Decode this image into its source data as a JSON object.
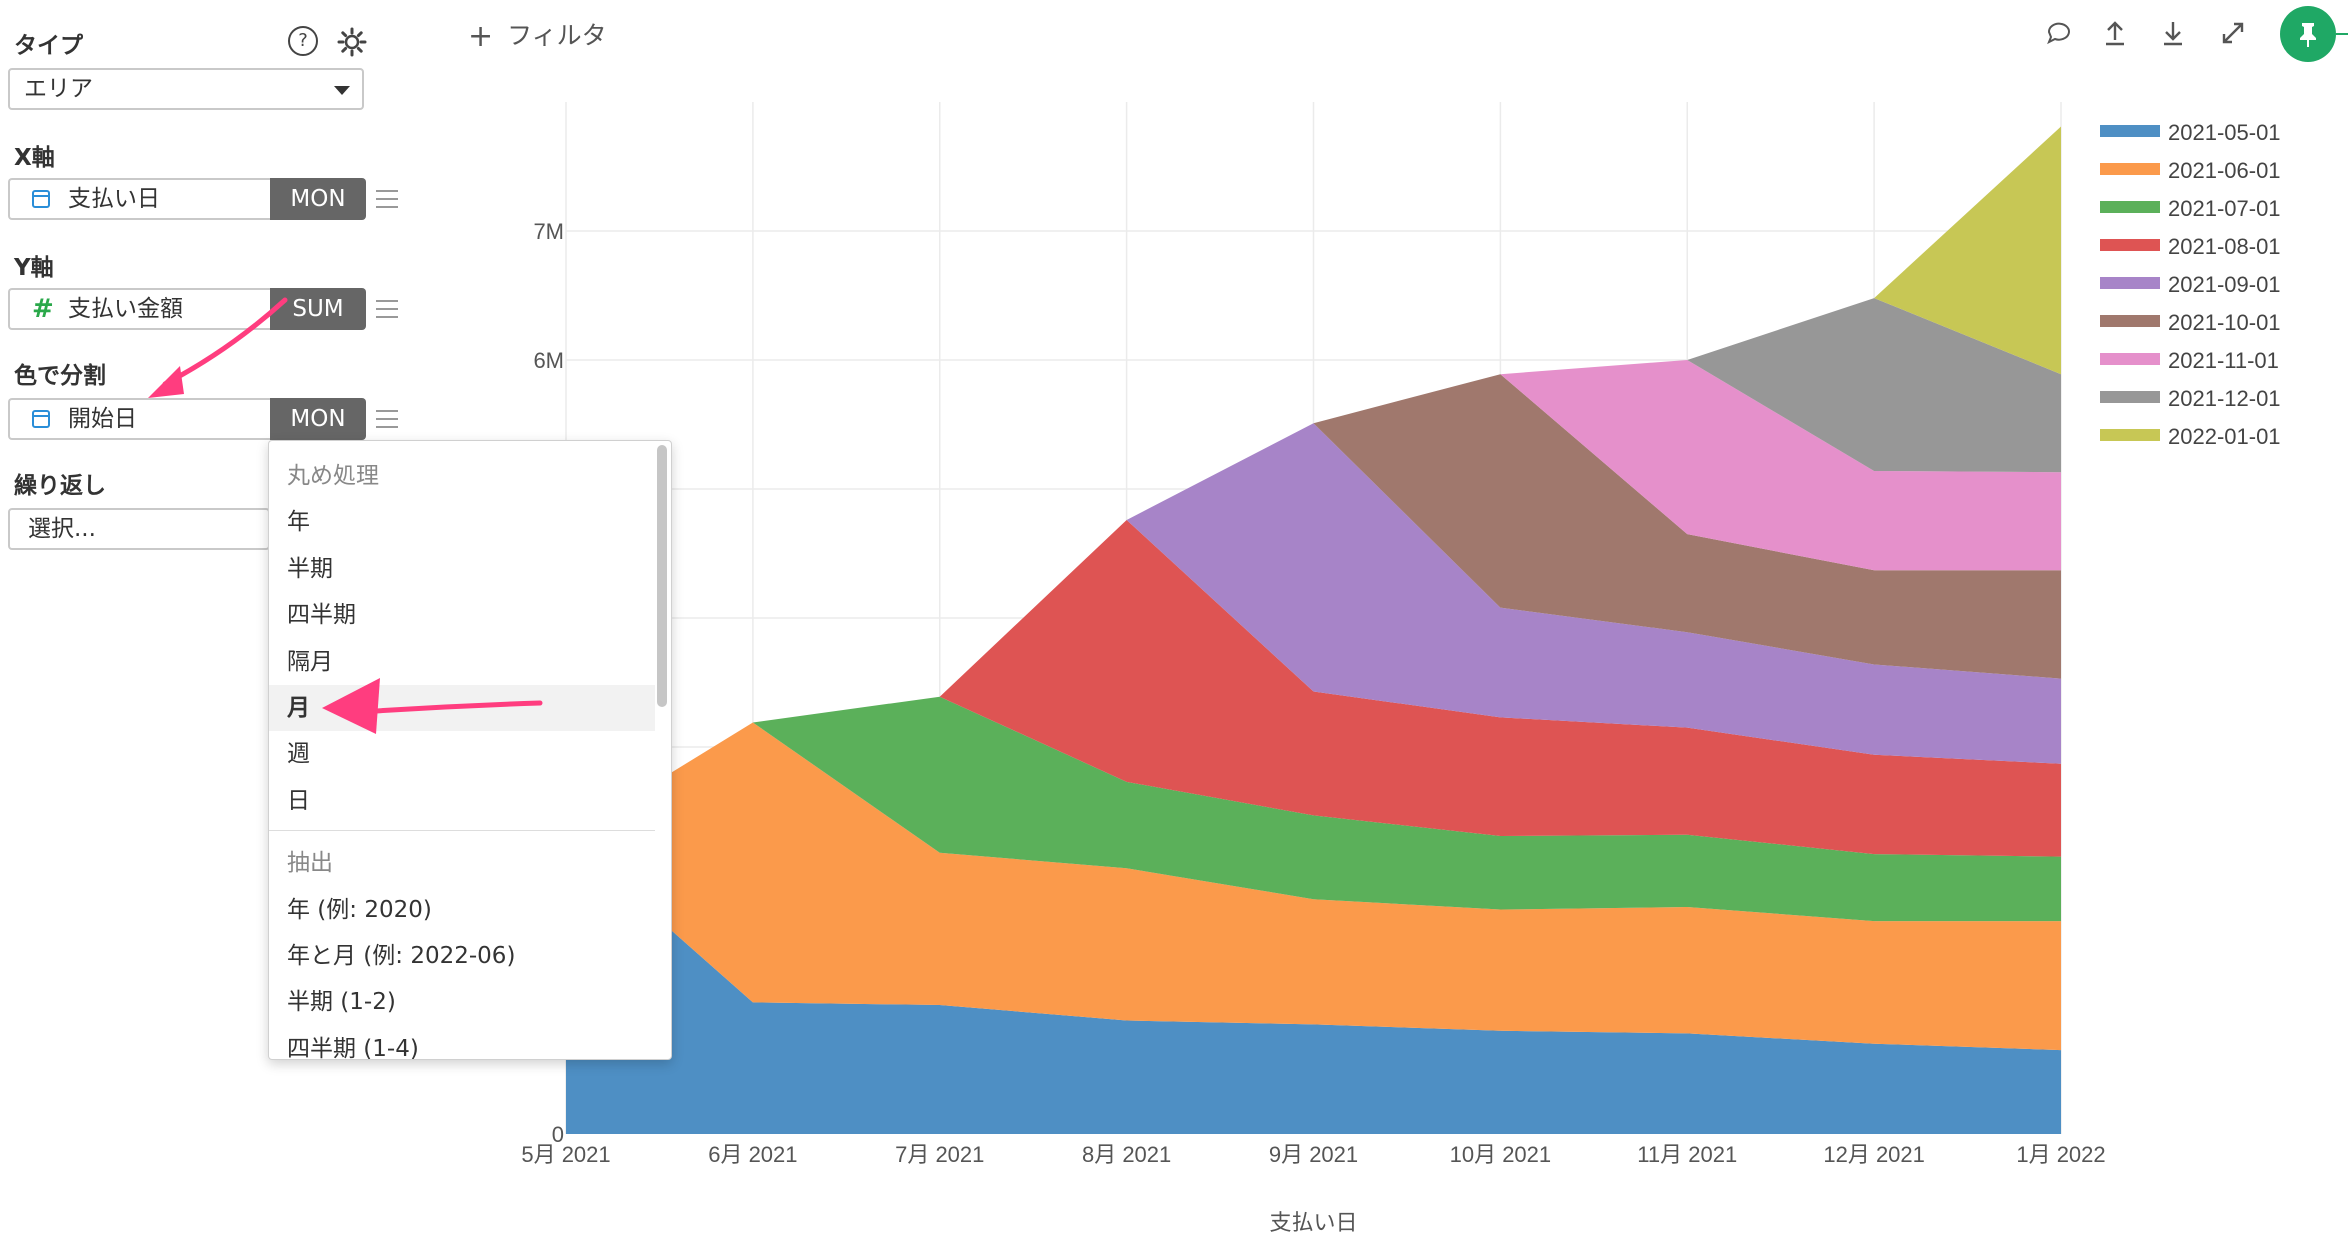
{
  "sidebar": {
    "type_label": "タイプ",
    "type_value": "エリア",
    "x_label": "X軸",
    "x_field": "支払い日",
    "x_agg": "MON",
    "y_label": "Y軸",
    "y_field": "支払い金額",
    "y_agg": "SUM",
    "color_label": "色で分割",
    "color_field": "開始日",
    "color_agg": "MON",
    "repeat_label": "繰り返し",
    "repeat_placeholder": "選択..."
  },
  "dropdown": {
    "group1_header": "丸め処理",
    "group1_items": [
      "年",
      "半期",
      "四半期",
      "隔月",
      "月",
      "週",
      "日"
    ],
    "selected": "月",
    "group2_header": "抽出",
    "group2_items": [
      "年 (例: 2020)",
      "年と月 (例: 2022-06)",
      "半期 (1-2)",
      "四半期 (1-4)"
    ]
  },
  "header": {
    "filter_label": "フィルタ",
    "icons": [
      "comment-icon",
      "upload-icon",
      "download-icon",
      "expand-icon",
      "pin-icon"
    ]
  },
  "colors": {
    "accent_pink": "#ff3d7f",
    "pin_green": "#1fa865"
  },
  "chart_data": {
    "type": "area",
    "stacked": true,
    "x": [
      "5月 2021",
      "6月 2021",
      "7月 2021",
      "8月 2021",
      "9月 2021",
      "10月 2021",
      "11月 2021",
      "12月 2021",
      "1月 2022"
    ],
    "xlabel": "支払い日",
    "y_ticks": [
      "0",
      "6M",
      "7M"
    ],
    "y_tick_values": [
      0,
      6000000,
      7000000
    ],
    "ylim": [
      0,
      8000000
    ],
    "grid": true,
    "legend_position": "right",
    "series": [
      {
        "name": "2021-05-01",
        "color": "#4e8fc4",
        "values": [
          2300000,
          1020000,
          1000000,
          880000,
          850000,
          800000,
          780000,
          700000,
          650000
        ]
      },
      {
        "name": "2021-06-01",
        "color": "#fb9a4b",
        "values": [
          0,
          2170000,
          1180000,
          1180000,
          970000,
          940000,
          980000,
          950000,
          1000000
        ]
      },
      {
        "name": "2021-07-01",
        "color": "#5bb05a",
        "values": [
          0,
          0,
          1210000,
          670000,
          650000,
          570000,
          560000,
          520000,
          500000
        ]
      },
      {
        "name": "2021-08-01",
        "color": "#de5453",
        "values": [
          0,
          0,
          0,
          2030000,
          960000,
          920000,
          830000,
          770000,
          720000
        ]
      },
      {
        "name": "2021-09-01",
        "color": "#a784c8",
        "values": [
          0,
          0,
          0,
          0,
          2080000,
          850000,
          740000,
          700000,
          660000
        ]
      },
      {
        "name": "2021-10-01",
        "color": "#a0786d",
        "values": [
          0,
          0,
          0,
          0,
          0,
          1810000,
          760000,
          730000,
          840000
        ]
      },
      {
        "name": "2021-11-01",
        "color": "#e590cb",
        "values": [
          0,
          0,
          0,
          0,
          0,
          0,
          1350000,
          770000,
          760000
        ]
      },
      {
        "name": "2021-12-01",
        "color": "#979797",
        "values": [
          0,
          0,
          0,
          0,
          0,
          0,
          0,
          1340000,
          760000
        ]
      },
      {
        "name": "2022-01-01",
        "color": "#c7c755",
        "values": [
          0,
          0,
          0,
          0,
          0,
          0,
          0,
          0,
          1920000
        ]
      }
    ]
  }
}
